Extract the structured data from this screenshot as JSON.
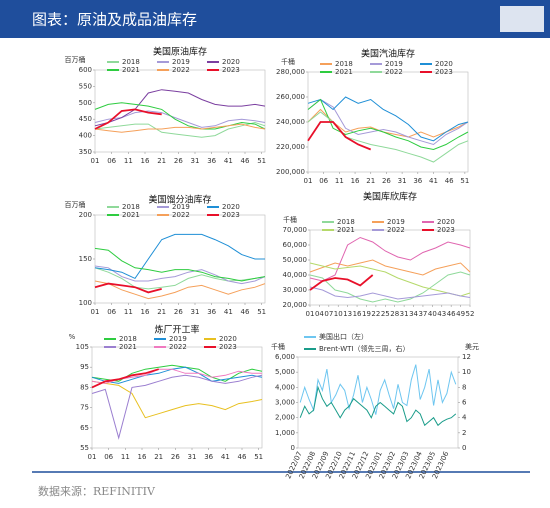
{
  "header": {
    "title": "图表：原油及成品油库存"
  },
  "source": "数据来源：REFINITIV",
  "chart_data": [
    {
      "type": "line",
      "title": "美国原油库存",
      "y_label": "百万桶",
      "legend": "top",
      "x": [
        1,
        5,
        9,
        13,
        17,
        21,
        25,
        29,
        33,
        37,
        41,
        45,
        49,
        52
      ],
      "xlim": [
        1,
        52
      ],
      "xticks": [
        {
          "value": 1,
          "label": "01"
        },
        {
          "value": 6,
          "label": "06"
        },
        11,
        16,
        21,
        26,
        31,
        36,
        41,
        46,
        51
      ],
      "ylim": [
        350,
        600
      ],
      "yticks": [
        350,
        400,
        450,
        500,
        550,
        600
      ],
      "series": [
        {
          "name": "2018",
          "color": "#8fd99a",
          "values": [
            420,
            425,
            430,
            435,
            435,
            410,
            405,
            400,
            395,
            400,
            420,
            430,
            440,
            430
          ]
        },
        {
          "name": "2019",
          "color": "#a59ad8",
          "values": [
            440,
            450,
            455,
            470,
            475,
            470,
            455,
            440,
            425,
            430,
            445,
            450,
            445,
            440
          ]
        },
        {
          "name": "2020",
          "color": "#7b3fa0",
          "values": [
            430,
            440,
            455,
            480,
            530,
            540,
            535,
            530,
            510,
            495,
            490,
            490,
            495,
            490
          ]
        },
        {
          "name": "2021",
          "color": "#2ecc40",
          "values": [
            480,
            495,
            500,
            495,
            490,
            480,
            450,
            430,
            420,
            420,
            430,
            440,
            435,
            420
          ]
        },
        {
          "name": "2022",
          "color": "#f5a05a",
          "values": [
            420,
            415,
            410,
            415,
            420,
            420,
            425,
            425,
            420,
            425,
            430,
            435,
            425,
            420
          ]
        },
        {
          "name": "2023",
          "color": "#e8102a",
          "values": [
            420,
            440,
            475,
            480,
            470,
            465,
            null,
            null,
            null,
            null,
            null,
            null,
            null,
            null
          ]
        }
      ]
    },
    {
      "type": "line",
      "title": "美国汽油库存",
      "y_label": "千桶",
      "legend": "top",
      "x": [
        1,
        5,
        9,
        13,
        17,
        21,
        25,
        29,
        33,
        37,
        41,
        45,
        49,
        52
      ],
      "xlim": [
        1,
        52
      ],
      "xticks": [
        {
          "value": 1,
          "label": "01"
        },
        {
          "value": 6,
          "label": "06"
        },
        11,
        16,
        21,
        26,
        31,
        36,
        41,
        46,
        51
      ],
      "ylim": [
        200000,
        280000
      ],
      "yticks": [
        {
          "value": 200000,
          "label": "200,000"
        },
        {
          "value": 220000,
          "label": "220,000"
        },
        {
          "value": 240000,
          "label": "240,000"
        },
        {
          "value": 260000,
          "label": "260,000"
        },
        {
          "value": 280000,
          "label": "280,000"
        }
      ],
      "series": [
        {
          "name": "2018",
          "color": "#f5a05a",
          "values": [
            240000,
            250000,
            240000,
            232000,
            235000,
            236000,
            232000,
            230000,
            228000,
            232000,
            228000,
            232000,
            236000,
            240000
          ]
        },
        {
          "name": "2019",
          "color": "#a59ad8",
          "values": [
            250000,
            258000,
            252000,
            235000,
            230000,
            232000,
            234000,
            232000,
            228000,
            225000,
            222000,
            230000,
            235000,
            240000
          ]
        },
        {
          "name": "2020",
          "color": "#1f8fd6",
          "values": [
            255000,
            258000,
            250000,
            260000,
            255000,
            258000,
            250000,
            245000,
            238000,
            228000,
            225000,
            232000,
            238000,
            240000
          ]
        },
        {
          "name": "2021",
          "color": "#2ecc40",
          "values": [
            250000,
            258000,
            235000,
            230000,
            233000,
            235000,
            232000,
            228000,
            225000,
            220000,
            218000,
            222000,
            228000,
            232000
          ]
        },
        {
          "name": "2022",
          "color": "#8fd99a",
          "values": [
            240000,
            248000,
            240000,
            228000,
            225000,
            222000,
            220000,
            218000,
            215000,
            212000,
            208000,
            215000,
            222000,
            225000
          ]
        },
        {
          "name": "2023",
          "color": "#e8102a",
          "values": [
            225000,
            240000,
            240000,
            228000,
            222000,
            218000,
            null,
            null,
            null,
            null,
            null,
            null,
            null,
            null
          ]
        }
      ]
    },
    {
      "type": "line",
      "title": "美国馏分油库存",
      "y_label": "百万桶",
      "legend": "top",
      "x": [
        1,
        5,
        9,
        13,
        17,
        21,
        25,
        29,
        33,
        37,
        41,
        45,
        49,
        52
      ],
      "xlim": [
        1,
        52
      ],
      "xticks": [
        {
          "value": 1,
          "label": "01"
        },
        {
          "value": 6,
          "label": "06"
        },
        11,
        16,
        21,
        26,
        31,
        36,
        41,
        46,
        51
      ],
      "ylim": [
        100,
        200
      ],
      "yticks": [
        100,
        150,
        200
      ],
      "series": [
        {
          "name": "2018",
          "color": "#8fd99a",
          "values": [
            140,
            135,
            128,
            118,
            116,
            118,
            120,
            128,
            132,
            128,
            125,
            126,
            128,
            130
          ]
        },
        {
          "name": "2019",
          "color": "#a59ad8",
          "values": [
            142,
            140,
            130,
            125,
            125,
            128,
            130,
            135,
            138,
            132,
            125,
            122,
            125,
            130
          ]
        },
        {
          "name": "2020",
          "color": "#1f8fd6",
          "values": [
            140,
            138,
            135,
            128,
            150,
            172,
            178,
            178,
            178,
            172,
            165,
            155,
            150,
            150
          ]
        },
        {
          "name": "2021",
          "color": "#2ecc40",
          "values": [
            162,
            160,
            148,
            140,
            138,
            135,
            138,
            138,
            135,
            130,
            128,
            125,
            128,
            130
          ]
        },
        {
          "name": "2022",
          "color": "#f5a05a",
          "values": [
            125,
            122,
            115,
            110,
            105,
            108,
            112,
            118,
            120,
            115,
            110,
            115,
            118,
            122
          ]
        },
        {
          "name": "2023",
          "color": "#e8102a",
          "values": [
            118,
            122,
            120,
            118,
            112,
            116,
            null,
            null,
            null,
            null,
            null,
            null,
            null,
            null
          ]
        }
      ]
    },
    {
      "type": "line",
      "title": "美国库欣库存",
      "y_label": "千桶",
      "legend": "top",
      "x": [
        1,
        5,
        9,
        13,
        17,
        21,
        25,
        29,
        33,
        37,
        41,
        45,
        49,
        52
      ],
      "xlim": [
        1,
        52
      ],
      "xticks": [
        {
          "value": 1,
          "label": "01"
        },
        {
          "value": 4,
          "label": "04"
        },
        {
          "value": 7,
          "label": "07"
        },
        10,
        13,
        16,
        19,
        22,
        25,
        28,
        31,
        34,
        37,
        40,
        43,
        46,
        49,
        52
      ],
      "ylim": [
        20000,
        70000
      ],
      "yticks": [
        {
          "value": 20000,
          "label": "20,000"
        },
        {
          "value": 30000,
          "label": "30,000"
        },
        {
          "value": 40000,
          "label": "40,000"
        },
        {
          "value": 50000,
          "label": "50,000"
        },
        {
          "value": 60000,
          "label": "60,000"
        },
        {
          "value": 70000,
          "label": "70,000"
        }
      ],
      "series": [
        {
          "name": "2018",
          "color": "#8fd99a",
          "values": [
            40000,
            38000,
            30000,
            28000,
            24000,
            22000,
            24000,
            22000,
            24000,
            28000,
            34000,
            40000,
            42000,
            40000
          ]
        },
        {
          "name": "2019",
          "color": "#f5a05a",
          "values": [
            42000,
            45000,
            48000,
            46000,
            48000,
            50000,
            46000,
            44000,
            42000,
            40000,
            44000,
            46000,
            48000,
            42000
          ]
        },
        {
          "name": "2020",
          "color": "#e066b0",
          "values": [
            38000,
            36000,
            40000,
            60000,
            65000,
            62000,
            56000,
            52000,
            50000,
            55000,
            58000,
            62000,
            60000,
            58000
          ]
        },
        {
          "name": "2021",
          "color": "#b5d96a",
          "values": [
            48000,
            46000,
            44000,
            45000,
            46000,
            44000,
            42000,
            38000,
            35000,
            32000,
            30000,
            28000,
            26000,
            28000
          ]
        },
        {
          "name": "2022",
          "color": "#a59ad8",
          "values": [
            32000,
            30000,
            26000,
            25000,
            26000,
            28000,
            26000,
            24000,
            25000,
            26000,
            27000,
            28000,
            26000,
            25000
          ]
        },
        {
          "name": "2023",
          "color": "#e8102a",
          "values": [
            30000,
            36000,
            38000,
            37000,
            33000,
            40000,
            null,
            null,
            null,
            null,
            null,
            null,
            null,
            null
          ]
        }
      ]
    },
    {
      "type": "line",
      "title": "炼厂开工率",
      "y_label": "%",
      "legend": "top",
      "x": [
        1,
        5,
        9,
        13,
        17,
        21,
        25,
        29,
        33,
        37,
        41,
        45,
        49,
        52
      ],
      "xlim": [
        1,
        52
      ],
      "xticks": [
        {
          "value": 1,
          "label": "01"
        },
        {
          "value": 6,
          "label": "06"
        },
        11,
        16,
        21,
        26,
        31,
        36,
        41,
        46,
        51
      ],
      "ylim": [
        55,
        105
      ],
      "yticks": [
        55,
        65,
        75,
        85,
        95,
        105
      ],
      "series": [
        {
          "name": "2018",
          "color": "#2ecc40",
          "values": [
            90,
            89,
            88,
            92,
            94,
            95,
            96,
            95,
            94,
            90,
            88,
            92,
            94,
            93
          ]
        },
        {
          "name": "2019",
          "color": "#1f8fd6",
          "values": [
            90,
            88,
            87,
            89,
            91,
            92,
            94,
            95,
            92,
            88,
            89,
            90,
            91,
            90
          ]
        },
        {
          "name": "2020",
          "color": "#e8c020",
          "values": [
            88,
            87,
            86,
            82,
            70,
            72,
            74,
            76,
            77,
            76,
            74,
            77,
            78,
            79
          ]
        },
        {
          "name": "2021",
          "color": "#9b7fd0",
          "values": [
            82,
            84,
            60,
            85,
            86,
            88,
            90,
            91,
            90,
            88,
            87,
            88,
            90,
            91
          ]
        },
        {
          "name": "2022",
          "color": "#f07ac0",
          "values": [
            88,
            87,
            89,
            90,
            91,
            94,
            94,
            92,
            92,
            90,
            91,
            93,
            92,
            92
          ]
        },
        {
          "name": "2023",
          "color": "#e8102a",
          "values": [
            85,
            88,
            89,
            91,
            92,
            94,
            null,
            null,
            null,
            null,
            null,
            null,
            null,
            null
          ]
        }
      ]
    },
    {
      "type": "line",
      "y_label": "千桶",
      "y2_label": "美元",
      "legend": "top-left",
      "categories": [
        "2022/07",
        null,
        null,
        "2022/08",
        null,
        null,
        "2022/09",
        null,
        null,
        "2022/10",
        null,
        null,
        "2022/11",
        null,
        null,
        "2022/12",
        null,
        null,
        "2023/01",
        null,
        null,
        "2023/02",
        null,
        null,
        "2023/03",
        null,
        null,
        "2023/04",
        null,
        null,
        "2023/05",
        null,
        null,
        "2023/06",
        null,
        null
      ],
      "ylim": [
        0,
        6000
      ],
      "yticks": [
        0,
        {
          "value": 1000,
          "label": "1,000"
        },
        {
          "value": 2000,
          "label": "2,000"
        },
        {
          "value": 3000,
          "label": "3,000"
        },
        {
          "value": 4000,
          "label": "4,000"
        },
        {
          "value": 5000,
          "label": "5,000"
        },
        {
          "value": 6000,
          "label": "6,000"
        }
      ],
      "y2lim": [
        0,
        12
      ],
      "y2ticks": [
        0,
        2,
        4,
        6,
        8,
        10,
        12
      ],
      "series": [
        {
          "name": "美国出口（左）",
          "color": "#6ec6f0",
          "values": [
            3000,
            4000,
            3200,
            2500,
            4500,
            3800,
            5200,
            3000,
            3500,
            4200,
            3800,
            2600,
            3500,
            4800,
            3000,
            4000,
            3200,
            2200,
            3800,
            4500,
            3500,
            2600,
            4200,
            3000,
            2800,
            4500,
            5500,
            3200,
            4000,
            5200,
            2800,
            4500,
            3000,
            3600,
            5000,
            4200
          ]
        },
        {
          "name": "Brent-WTI（领先三周，右）",
          "color": "#1a9c8a",
          "axis": "y2",
          "values": [
            4,
            5.5,
            4.5,
            5,
            8,
            6.5,
            5.5,
            6,
            5,
            4,
            5,
            5.5,
            6.5,
            6,
            5.5,
            5,
            4,
            5.5,
            6,
            5.5,
            5,
            4.5,
            6,
            5.5,
            3.5,
            4,
            5,
            4.5,
            3,
            3.5,
            4,
            3,
            3.5,
            3.8,
            4,
            4.5
          ]
        }
      ]
    }
  ]
}
